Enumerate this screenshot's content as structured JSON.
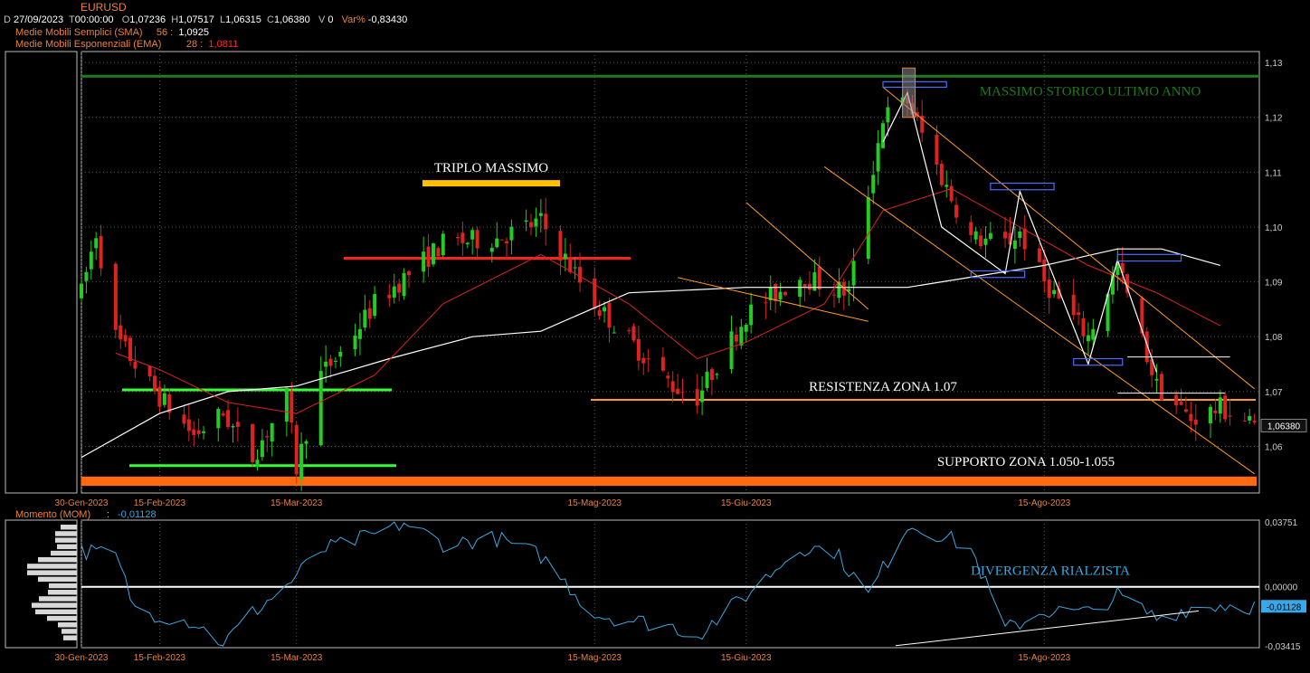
{
  "header": {
    "symbol": "EURUSD",
    "date_label": "D",
    "date": "27/09/2023",
    "time_label": "T",
    "time": "00:00:00",
    "open_label": "O",
    "open": "1,07236",
    "high_label": "H",
    "high": "1,07517",
    "low_label": "L",
    "low": "1,06315",
    "close_label": "C",
    "close": "1,06380",
    "vol_label": "V",
    "vol": "0",
    "var_label": "Var%",
    "var": "-0,83430",
    "sma_label": "Medie Mobili Semplici (SMA)",
    "sma_period": "56 :",
    "sma_value": "1,0925",
    "ema_label": "Medie Mobili Esponenziali (EMA)",
    "ema_period": "28 :",
    "ema_value": "1,0811"
  },
  "colors": {
    "bull": "#22cc22",
    "bear": "#dd2222",
    "sma": "#ffffff",
    "ema": "#dd2222",
    "momentum": "#3aa7e0",
    "support": "#ff6a10",
    "resistance": "#ff9a2a",
    "green_level": "#33ff33",
    "red_level": "#ff2020",
    "triple_top": "#ffc000",
    "annual_high": "#1e7a1e",
    "channel": "#ff9a2a",
    "box": "#4d6bff"
  },
  "chart_data": [
    {
      "type": "candlestick",
      "y_axis": {
        "ticks": [
          "1,13",
          "1,12",
          "1,11",
          "1,10",
          "1,09",
          "1,08",
          "1,07",
          "1,06"
        ],
        "range": [
          1.0515,
          1.132
        ],
        "last_price": "1,06380"
      },
      "x_axis": {
        "ticks": [
          "30-Gen-2023",
          "15-Feb-2023",
          "15-Mar-2023",
          "15-Mag-2023",
          "15-Giu-2023",
          "15-Ago-2023"
        ],
        "range": [
          "2023-01-30",
          "2023-09-28"
        ]
      },
      "annotations": {
        "annual_high": "MASSIMO STORICO ULTIMO ANNO",
        "triple_top": "TRIPLO MASSIMO",
        "resistance": "RESISTENZA ZONA 1.07",
        "support": "SUPPORTO ZONA 1.050-1.055"
      },
      "levels": {
        "annual_high": 1.1275,
        "resistance": 1.0685,
        "support_zone": [
          1.0528,
          1.0545
        ],
        "red_resistance": 1.0943,
        "triple_top": 1.1079,
        "green_upper": 1.0703,
        "green_lower": 1.0565
      },
      "waypoints": [
        [
          "2023-01-30",
          1.088
        ],
        [
          "2023-02-02",
          1.099
        ],
        [
          "2023-02-06",
          1.08
        ],
        [
          "2023-02-14",
          1.07
        ],
        [
          "2023-02-22",
          1.062
        ],
        [
          "2023-02-28",
          1.066
        ],
        [
          "2023-03-06",
          1.058
        ],
        [
          "2023-03-13",
          1.069
        ],
        [
          "2023-03-15",
          1.056
        ],
        [
          "2023-03-20",
          1.073
        ],
        [
          "2023-03-24",
          1.077
        ],
        [
          "2023-03-31",
          1.086
        ],
        [
          "2023-04-14",
          1.097
        ],
        [
          "2023-04-25",
          1.098
        ],
        [
          "2023-05-04",
          1.101
        ],
        [
          "2023-05-15",
          1.086
        ],
        [
          "2023-05-31",
          1.071
        ],
        [
          "2023-06-05",
          1.069
        ],
        [
          "2023-06-15",
          1.084
        ],
        [
          "2023-06-26",
          1.091
        ],
        [
          "2023-07-06",
          1.088
        ],
        [
          "2023-07-13",
          1.12
        ],
        [
          "2023-07-18",
          1.123
        ],
        [
          "2023-07-25",
          1.109
        ],
        [
          "2023-07-31",
          1.098
        ],
        [
          "2023-08-07",
          1.097
        ],
        [
          "2023-08-10",
          1.099
        ],
        [
          "2023-08-15",
          1.09
        ],
        [
          "2023-08-24",
          1.08
        ],
        [
          "2023-08-30",
          1.093
        ],
        [
          "2023-09-07",
          1.071
        ],
        [
          "2023-09-14",
          1.065
        ],
        [
          "2023-09-20",
          1.067
        ],
        [
          "2023-09-27",
          1.0638
        ]
      ],
      "sma": [
        [
          "2023-01-30",
          1.058
        ],
        [
          "2023-02-15",
          1.066
        ],
        [
          "2023-03-01",
          1.07
        ],
        [
          "2023-03-15",
          1.071
        ],
        [
          "2023-04-03",
          1.076
        ],
        [
          "2023-04-20",
          1.08
        ],
        [
          "2023-05-04",
          1.081
        ],
        [
          "2023-05-22",
          1.088
        ],
        [
          "2023-06-15",
          1.089
        ],
        [
          "2023-06-30",
          1.089
        ],
        [
          "2023-07-18",
          1.089
        ],
        [
          "2023-08-01",
          1.091
        ],
        [
          "2023-08-15",
          1.093
        ],
        [
          "2023-08-30",
          1.096
        ],
        [
          "2023-09-08",
          1.096
        ],
        [
          "2023-09-20",
          1.093
        ]
      ],
      "ema": [
        [
          "2023-02-06",
          1.077
        ],
        [
          "2023-02-15",
          1.074
        ],
        [
          "2023-03-01",
          1.068
        ],
        [
          "2023-03-15",
          1.066
        ],
        [
          "2023-03-31",
          1.073
        ],
        [
          "2023-04-14",
          1.086
        ],
        [
          "2023-05-04",
          1.095
        ],
        [
          "2023-05-22",
          1.086
        ],
        [
          "2023-06-05",
          1.076
        ],
        [
          "2023-06-15",
          1.079
        ],
        [
          "2023-07-01",
          1.086
        ],
        [
          "2023-07-13",
          1.103
        ],
        [
          "2023-07-27",
          1.107
        ],
        [
          "2023-08-10",
          1.1
        ],
        [
          "2023-08-24",
          1.093
        ],
        [
          "2023-09-07",
          1.088
        ],
        [
          "2023-09-20",
          1.082
        ]
      ]
    },
    {
      "type": "line",
      "title": "Momento (MOM)",
      "current_value": "-0,01128",
      "y_axis": {
        "ticks": [
          "0,03751",
          "0,00000",
          "-0,03415"
        ],
        "range": [
          -0.03415,
          0.03751
        ]
      },
      "x_axis": {
        "ticks": [
          "30-Gen-2023",
          "15-Feb-2023",
          "15-Mar-2023",
          "15-Mag-2023",
          "15-Giu-2023",
          "15-Ago-2023"
        ],
        "range": [
          "2023-01-30",
          "2023-09-28"
        ]
      },
      "annotation": "DIVERGENZA RIALZISTA",
      "waypoints": [
        [
          "2023-01-30",
          0.021
        ],
        [
          "2023-02-06",
          0.018
        ],
        [
          "2023-02-10",
          -0.013
        ],
        [
          "2023-02-22",
          -0.0205
        ],
        [
          "2023-02-28",
          -0.033
        ],
        [
          "2023-03-06",
          -0.015
        ],
        [
          "2023-03-13",
          0.0005
        ],
        [
          "2023-03-20",
          0.021
        ],
        [
          "2023-03-31",
          0.03
        ],
        [
          "2023-04-06",
          0.037
        ],
        [
          "2023-04-14",
          0.025
        ],
        [
          "2023-04-25",
          0.028
        ],
        [
          "2023-05-04",
          0.018
        ],
        [
          "2023-05-15",
          -0.016
        ],
        [
          "2023-05-31",
          -0.023
        ],
        [
          "2023-06-05",
          -0.028
        ],
        [
          "2023-06-15",
          -0.005
        ],
        [
          "2023-06-26",
          0.023
        ],
        [
          "2023-07-03",
          0.021
        ],
        [
          "2023-07-10",
          -0.005
        ],
        [
          "2023-07-18",
          0.036
        ],
        [
          "2023-07-25",
          0.03
        ],
        [
          "2023-07-31",
          0.022
        ],
        [
          "2023-08-07",
          -0.025
        ],
        [
          "2023-08-15",
          -0.014
        ],
        [
          "2023-08-24",
          -0.015
        ],
        [
          "2023-08-30",
          -0.005
        ],
        [
          "2023-09-07",
          -0.018
        ],
        [
          "2023-09-14",
          -0.012
        ],
        [
          "2023-09-20",
          -0.0105
        ],
        [
          "2023-09-27",
          -0.0113
        ]
      ],
      "divergence_line": [
        [
          "2023-07-31",
          -0.033
        ],
        [
          "2023-09-27",
          -0.015
        ]
      ],
      "histogram_bars": 18
    }
  ]
}
